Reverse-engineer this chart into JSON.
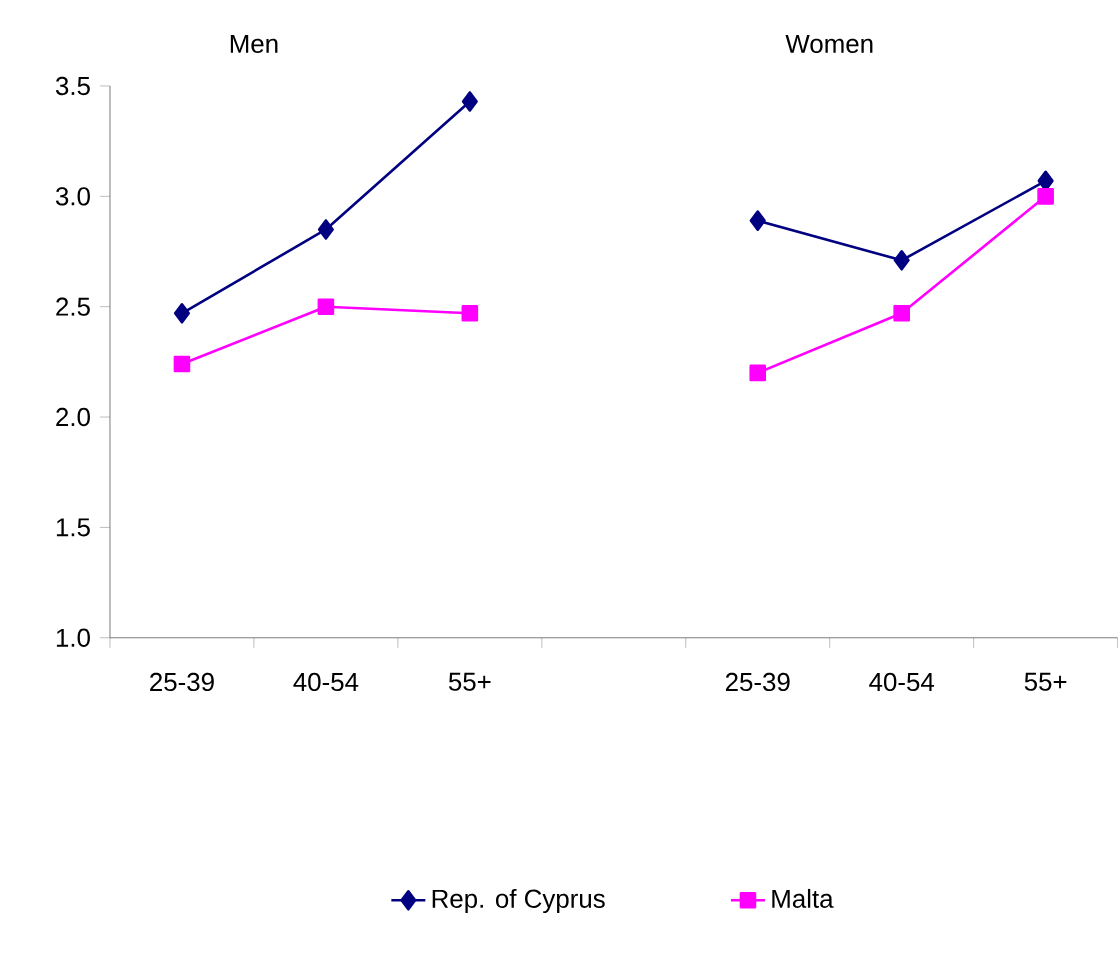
{
  "chart_data": {
    "type": "line",
    "categories": [
      "25-39",
      "40-54",
      "55+",
      null,
      "25-39",
      "40-54",
      "55+"
    ],
    "series": [
      {
        "name": "Rep. of Cyprus",
        "color": "#000080",
        "marker": "diamond",
        "values": [
          2.47,
          2.85,
          3.43,
          null,
          2.89,
          2.71,
          3.07
        ]
      },
      {
        "name": "Malta",
        "color": "#ff00ff",
        "marker": "square",
        "values": [
          2.24,
          2.5,
          2.47,
          null,
          2.2,
          2.47,
          3.0
        ]
      }
    ],
    "annotations": [
      "Men",
      "Women"
    ],
    "ylim": [
      1.0,
      3.5
    ],
    "yticks": [
      {
        "value": 1.0,
        "label": "1.0"
      },
      {
        "value": 1.5,
        "label": "1.5"
      },
      {
        "value": 2.0,
        "label": "2.0"
      },
      {
        "value": 2.5,
        "label": "2.5"
      },
      {
        "value": 3.0,
        "label": "3.0"
      },
      {
        "value": 3.5,
        "label": "3.5"
      }
    ],
    "legend": "bottom",
    "grid": false
  }
}
